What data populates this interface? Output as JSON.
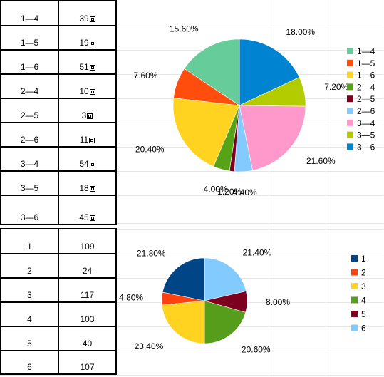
{
  "tables": [
    {
      "rows": [
        {
          "label": "1—4",
          "value": "39",
          "glyph": true
        },
        {
          "label": "1—5",
          "value": "19",
          "glyph": true
        },
        {
          "label": "1—6",
          "value": "51",
          "glyph": true
        },
        {
          "label": "2—4",
          "value": "10",
          "glyph": true
        },
        {
          "label": "2—5",
          "value": "3",
          "glyph": true
        },
        {
          "label": "2—6",
          "value": "11",
          "glyph": true
        },
        {
          "label": "3—4",
          "value": "54",
          "glyph": true
        },
        {
          "label": "3—5",
          "value": "18",
          "glyph": true
        },
        {
          "label": "3—6",
          "value": "45",
          "glyph": true
        }
      ]
    },
    {
      "rows": [
        {
          "label": "1",
          "value": "109",
          "glyph": false
        },
        {
          "label": "2",
          "value": "24",
          "glyph": false
        },
        {
          "label": "3",
          "value": "117",
          "glyph": false
        },
        {
          "label": "4",
          "value": "103",
          "glyph": false
        },
        {
          "label": "5",
          "value": "40",
          "glyph": false
        },
        {
          "label": "6",
          "value": "107",
          "glyph": false
        }
      ]
    }
  ],
  "chart_data": [
    {
      "type": "pie",
      "categories": [
        "1—4",
        "1—5",
        "1—6",
        "2—4",
        "2—5",
        "2—6",
        "3—4",
        "3—5",
        "3—6"
      ],
      "values": [
        15.6,
        7.6,
        20.4,
        4.0,
        1.2,
        4.4,
        21.6,
        7.2,
        18.0
      ],
      "data_labels": [
        "15.60%",
        "7.60%",
        "20.40%",
        "4.00%",
        "1.20%",
        "4.40%",
        "21.60%",
        "7.20%",
        "18.00%"
      ],
      "colors": [
        "#66cc99",
        "#ff4d0d",
        "#ffd320",
        "#57a317",
        "#7e0021",
        "#83caff",
        "#ff99cc",
        "#b3cc00",
        "#0084d1"
      ],
      "legend": "right"
    },
    {
      "type": "pie",
      "categories": [
        "1",
        "2",
        "3",
        "4",
        "5",
        "6"
      ],
      "values": [
        21.8,
        4.8,
        23.4,
        20.6,
        8.0,
        21.4
      ],
      "data_labels": [
        "21.80%",
        "4.80%",
        "23.40%",
        "20.60%",
        "8.00%",
        "21.40%"
      ],
      "colors": [
        "#004586",
        "#ff420e",
        "#ffd320",
        "#579d1c",
        "#7e0021",
        "#83caff"
      ],
      "legend": "right"
    }
  ]
}
